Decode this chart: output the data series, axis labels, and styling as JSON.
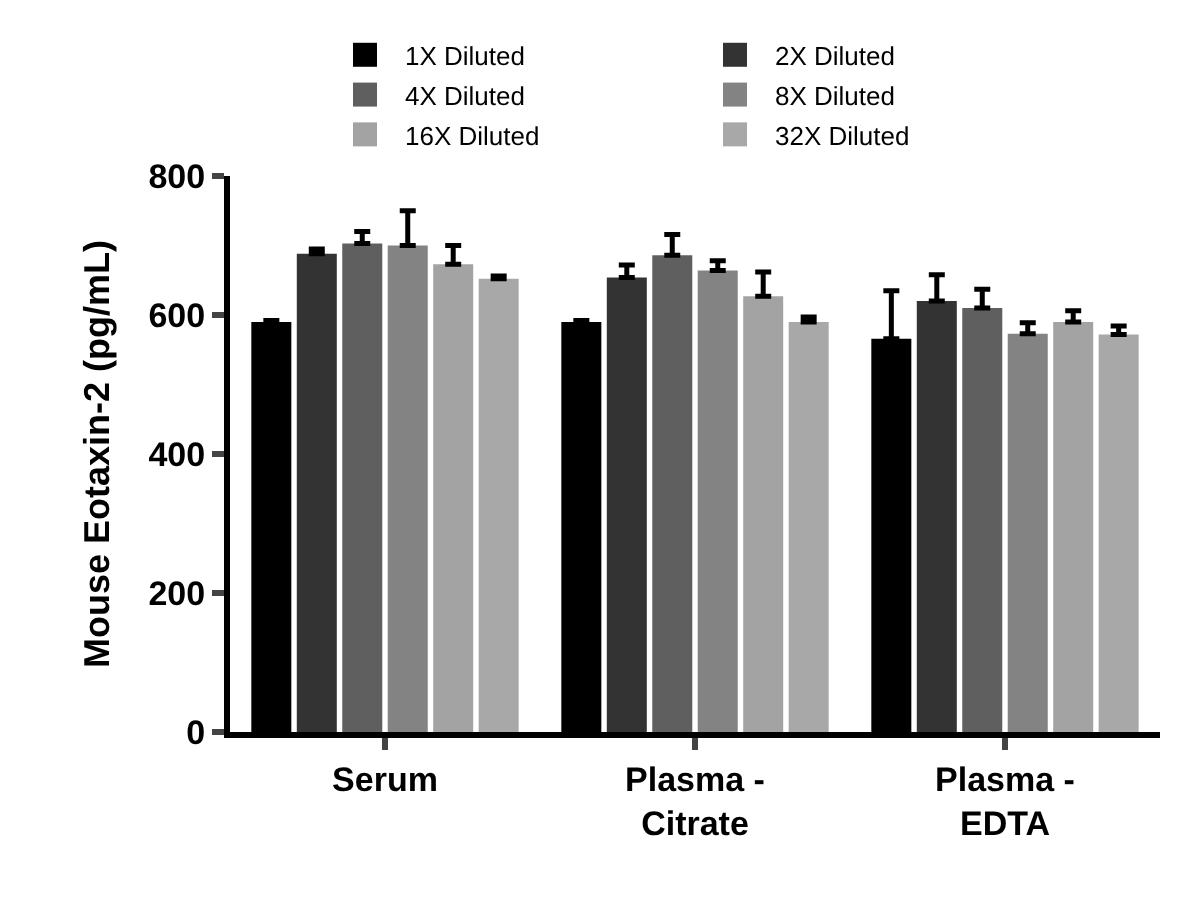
{
  "chart_data": {
    "type": "bar",
    "ylabel": "Mouse Eotaxin-2 (pg/mL)",
    "categories": [
      "Serum",
      "Plasma -\nCitrate",
      "Plasma -\nEDTA"
    ],
    "series": [
      {
        "name": "1X Diluted",
        "color": "#000000",
        "values": [
          590,
          590,
          566
        ],
        "errors": [
          [
            590,
            592
          ],
          [
            590,
            592
          ],
          [
            566,
            635
          ]
        ]
      },
      {
        "name": "2X Diluted",
        "color": "#333333",
        "values": [
          688,
          654,
          620
        ],
        "errors": [
          [
            688,
            695
          ],
          [
            654,
            672
          ],
          [
            620,
            658
          ]
        ]
      },
      {
        "name": "4X Diluted",
        "color": "#5f5f5f",
        "values": [
          703,
          686,
          610
        ],
        "errors": [
          [
            703,
            720
          ],
          [
            686,
            716
          ],
          [
            610,
            637
          ]
        ]
      },
      {
        "name": "8X Diluted",
        "color": "#838383",
        "values": [
          700,
          664,
          573
        ],
        "errors": [
          [
            700,
            750
          ],
          [
            664,
            678
          ],
          [
            573,
            589
          ]
        ]
      },
      {
        "name": "16X Diluted",
        "color": "#a3a3a3",
        "values": [
          673,
          627,
          590
        ],
        "errors": [
          [
            673,
            700
          ],
          [
            627,
            662
          ],
          [
            590,
            606
          ]
        ]
      },
      {
        "name": "32X Diluted",
        "color": "#a8a8a8",
        "values": [
          652,
          590,
          572
        ],
        "errors": [
          [
            652,
            656
          ],
          [
            590,
            597
          ],
          [
            572,
            584
          ]
        ]
      }
    ],
    "ylim": [
      0,
      800
    ],
    "yticks": [
      0,
      200,
      400,
      600,
      800
    ],
    "legend": "top"
  }
}
